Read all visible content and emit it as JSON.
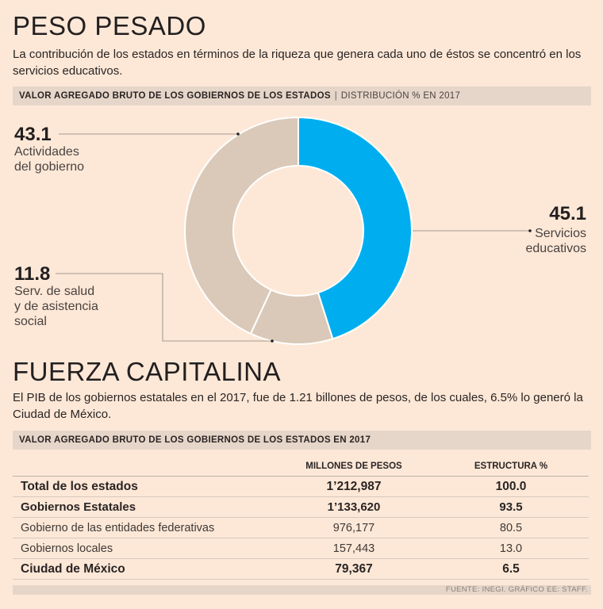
{
  "section1": {
    "title": "PESO PESADO",
    "intro": "La contribución de los estados en términos de la riqueza que genera cada uno de éstos se concentró en los servicios educativos.",
    "bar_title": "VALOR AGREGADO BRUTO DE LOS GOBIERNOS DE LOS ESTADOS",
    "bar_subtitle": "DISTRIBUCIÓN % EN 2017"
  },
  "section2": {
    "title": "FUERZA CAPITALINA",
    "intro": "El PIB de los gobiernos estatales en el 2017, fue de 1.21 billones de pesos, de los cuales, 6.5% lo generó la Ciudad de México.",
    "bar_title": "VALOR AGREGADO BRUTO DE LOS GOBIERNOS DE LOS ESTADOS EN 2017"
  },
  "colors": {
    "background": "#fde8d7",
    "highlight": "#00aeef",
    "neutral": "#dac9b8",
    "bar": "#e6d6c9"
  },
  "chart_data": [
    {
      "type": "pie",
      "style": "donut",
      "title": "VALOR AGREGADO BRUTO DE LOS GOBIERNOS DE LOS ESTADOS",
      "subtitle": "DISTRIBUCIÓN % EN 2017",
      "slices": [
        {
          "value": "45.1",
          "label": [
            "Servicios",
            "educativos"
          ],
          "color": "#00aeef"
        },
        {
          "value": "11.8",
          "label": [
            "Serv. de salud",
            "y de asistencia",
            "social"
          ],
          "color": "#dac9b8"
        },
        {
          "value": "43.1",
          "label": [
            "Actividades",
            "del gobierno"
          ],
          "color": "#dac9b8"
        }
      ]
    },
    {
      "type": "table",
      "title": "VALOR AGREGADO BRUTO DE LOS GOBIERNOS DE LOS ESTADOS EN 2017",
      "columns": [
        "",
        "MILLONES DE PESOS",
        "ESTRUCTURA %"
      ],
      "rows": [
        {
          "name": "Total de los estados",
          "millones": "1’212,987",
          "estructura": "100.0",
          "style": "bold"
        },
        {
          "name": "Gobiernos Estatales",
          "millones": "1’133,620",
          "estructura": "93.5",
          "style": "semi"
        },
        {
          "name": "Gobierno de las entidades federativas",
          "millones": "976,177",
          "estructura": "80.5",
          "style": "light"
        },
        {
          "name": "Gobiernos locales",
          "millones": "157,443",
          "estructura": "13.0",
          "style": "light"
        },
        {
          "name": "Ciudad de México",
          "millones": "79,367",
          "estructura": "6.5",
          "style": "bold"
        }
      ]
    }
  ],
  "source": "FUENTE: INEGI. GRÁFICO EE: STAFF."
}
